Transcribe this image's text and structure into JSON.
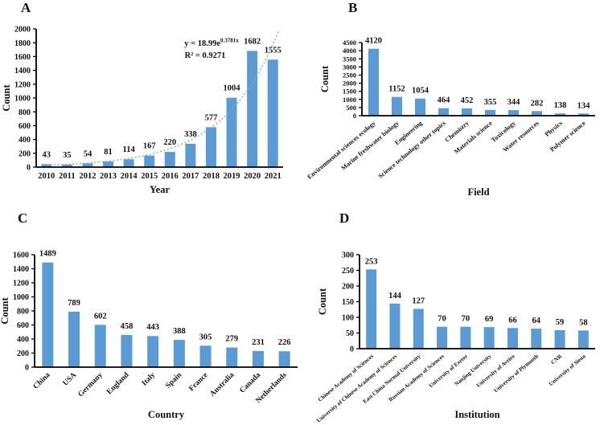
{
  "figure": {
    "background": "#ffffff",
    "bar_color": "#5B9BD5",
    "axis_color": "#000000"
  },
  "chart_data": [
    {
      "type": "bar",
      "panel": "A",
      "xlabel": "Year",
      "ylabel": "Count",
      "categories": [
        "2010",
        "2011",
        "2012",
        "2013",
        "2014",
        "2015",
        "2016",
        "2017",
        "2018",
        "2019",
        "2020",
        "2021"
      ],
      "values": [
        43,
        35,
        54,
        81,
        114,
        167,
        220,
        338,
        577,
        1004,
        1682,
        1555
      ],
      "ylim": [
        0,
        2000
      ],
      "ystep": 200,
      "bar_color": "#5B9BD5",
      "grid": false,
      "data_labels": true,
      "trendline": {
        "type": "exponential",
        "a": 18.99,
        "b": 0.3781,
        "equation_base": "y = 18.99e",
        "equation_exponent": "0.3781x",
        "r_squared": "R² = 0.9271",
        "color": "#7FA8DC",
        "style": "dotted"
      }
    },
    {
      "type": "bar",
      "panel": "B",
      "xlabel": "Field",
      "ylabel": "Count",
      "categories": [
        "Environmental sciences ecology",
        "Marine freshwater biology",
        "Engineering",
        "Science technology other topics",
        "Chemistry",
        "Materials science",
        "Toxicology",
        "Water resources",
        "Physics",
        "Polymer science"
      ],
      "values": [
        4120,
        1152,
        1054,
        464,
        452,
        355,
        344,
        282,
        138,
        134
      ],
      "ylim": [
        0,
        4500
      ],
      "ystep": 500,
      "bar_color": "#5B9BD5",
      "grid": false,
      "data_labels": true
    },
    {
      "type": "bar",
      "panel": "C",
      "xlabel": "Country",
      "ylabel": "Count",
      "categories": [
        "China",
        "USA",
        "Germany",
        "England",
        "Italy",
        "Spain",
        "France",
        "Australia",
        "Canada",
        "Netherlands"
      ],
      "values": [
        1489,
        789,
        602,
        458,
        443,
        388,
        305,
        279,
        231,
        226
      ],
      "ylim": [
        0,
        1600
      ],
      "ystep": 200,
      "bar_color": "#5B9BD5",
      "grid": false,
      "data_labels": true
    },
    {
      "type": "bar",
      "panel": "D",
      "xlabel": "Institution",
      "ylabel": "Count",
      "categories": [
        "Chinese Academy of Sciences",
        "University of Chinese Academy of Sciences",
        "East China Normal University",
        "Russian Academy of Sciences",
        "University of Exeter",
        "Nanjing University",
        "University of Aveiro",
        "University of Plymouth",
        "CNR",
        "University of Siena"
      ],
      "values": [
        253,
        144,
        127,
        70,
        70,
        69,
        66,
        64,
        59,
        58
      ],
      "ylim": [
        0,
        300
      ],
      "ystep": 50,
      "bar_color": "#5B9BD5",
      "grid": false,
      "data_labels": true
    }
  ]
}
